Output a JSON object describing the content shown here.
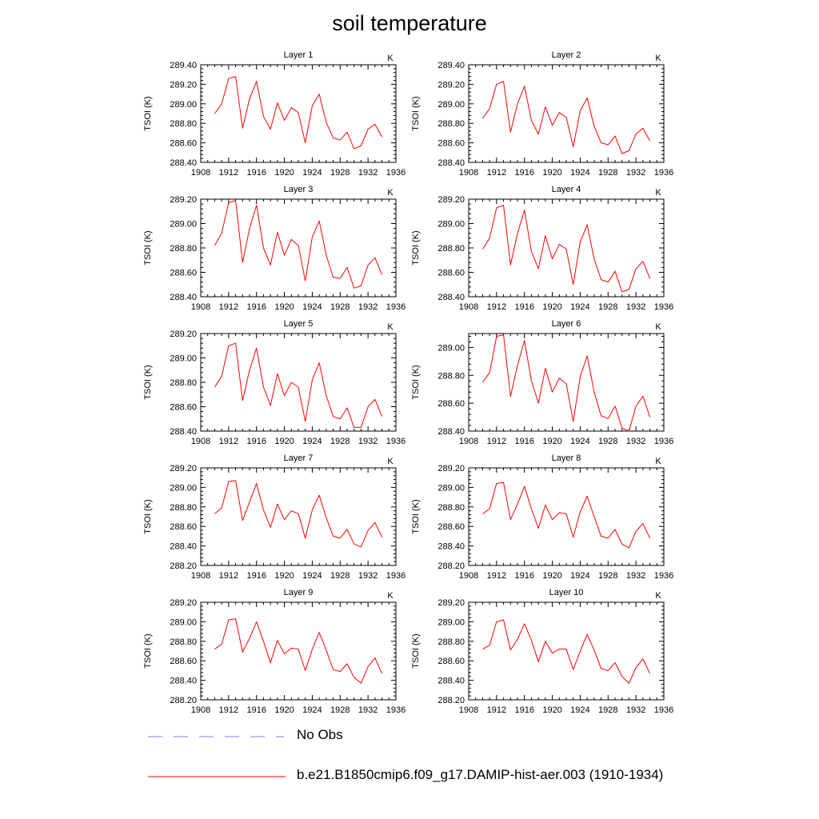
{
  "title": "soil temperature",
  "chart_data": [
    {
      "type": "line",
      "title": "Layer 1",
      "units": "K",
      "ylabel": "TSOI (K)",
      "xlim": [
        1908,
        1936
      ],
      "ylim": [
        288.4,
        289.4
      ],
      "yticks": [
        "288.40",
        "288.60",
        "288.80",
        "289.00",
        "289.20",
        "289.40"
      ],
      "xticks": [
        "1908",
        "1912",
        "1916",
        "1920",
        "1924",
        "1928",
        "1932",
        "1936"
      ],
      "x": [
        1910,
        1911,
        1912,
        1913,
        1914,
        1915,
        1916,
        1917,
        1918,
        1919,
        1920,
        1921,
        1922,
        1923,
        1924,
        1925,
        1926,
        1927,
        1928,
        1929,
        1930,
        1931,
        1932,
        1933,
        1934
      ],
      "series": [
        {
          "name": "b.e21.B1850cmip6.f09_g17.DAMIP-hist-aer.003 (1910-1934)",
          "color": "#ff0000",
          "values": [
            288.9,
            289.0,
            289.26,
            289.28,
            288.75,
            289.05,
            289.23,
            288.87,
            288.74,
            289.01,
            288.83,
            288.96,
            288.91,
            288.6,
            288.98,
            289.1,
            288.81,
            288.65,
            288.63,
            288.71,
            288.54,
            288.57,
            288.74,
            288.79,
            288.66
          ]
        }
      ]
    },
    {
      "type": "line",
      "title": "Layer 2",
      "units": "K",
      "ylabel": "TSOI (K)",
      "xlim": [
        1908,
        1936
      ],
      "ylim": [
        288.4,
        289.4
      ],
      "yticks": [
        "288.40",
        "288.60",
        "288.80",
        "289.00",
        "289.20",
        "289.40"
      ],
      "xticks": [
        "1908",
        "1912",
        "1916",
        "1920",
        "1924",
        "1928",
        "1932",
        "1936"
      ],
      "x": [
        1910,
        1911,
        1912,
        1913,
        1914,
        1915,
        1916,
        1917,
        1918,
        1919,
        1920,
        1921,
        1922,
        1923,
        1924,
        1925,
        1926,
        1927,
        1928,
        1929,
        1930,
        1931,
        1932,
        1933,
        1934
      ],
      "series": [
        {
          "name": "b.e21.B1850cmip6.f09_g17.DAMIP-hist-aer.003 (1910-1934)",
          "color": "#ff0000",
          "values": [
            288.85,
            288.95,
            289.2,
            289.23,
            288.71,
            289.0,
            289.18,
            288.83,
            288.69,
            288.97,
            288.78,
            288.91,
            288.86,
            288.56,
            288.93,
            289.06,
            288.77,
            288.6,
            288.58,
            288.67,
            288.49,
            288.52,
            288.69,
            288.75,
            288.62
          ]
        }
      ]
    },
    {
      "type": "line",
      "title": "Layer 3",
      "units": "K",
      "ylabel": "TSOI (K)",
      "xlim": [
        1908,
        1936
      ],
      "ylim": [
        288.4,
        289.2
      ],
      "yticks": [
        "288.40",
        "288.60",
        "288.80",
        "289.00",
        "289.20"
      ],
      "xticks": [
        "1908",
        "1912",
        "1916",
        "1920",
        "1924",
        "1928",
        "1932",
        "1936"
      ],
      "x": [
        1910,
        1911,
        1912,
        1913,
        1914,
        1915,
        1916,
        1917,
        1918,
        1919,
        1920,
        1921,
        1922,
        1923,
        1924,
        1925,
        1926,
        1927,
        1928,
        1929,
        1930,
        1931,
        1932,
        1933,
        1934
      ],
      "series": [
        {
          "name": "b.e21.B1850cmip6.f09_g17.DAMIP-hist-aer.003 (1910-1934)",
          "color": "#ff0000",
          "values": [
            288.82,
            288.92,
            289.17,
            289.19,
            288.68,
            288.96,
            289.15,
            288.8,
            288.66,
            288.93,
            288.74,
            288.87,
            288.82,
            288.53,
            288.89,
            289.02,
            288.74,
            288.56,
            288.55,
            288.64,
            288.47,
            288.49,
            288.66,
            288.72,
            288.58
          ]
        }
      ]
    },
    {
      "type": "line",
      "title": "Layer 4",
      "units": "K",
      "ylabel": "TSOI (K)",
      "xlim": [
        1908,
        1936
      ],
      "ylim": [
        288.4,
        289.2
      ],
      "yticks": [
        "288.40",
        "288.60",
        "288.80",
        "289.00",
        "289.20"
      ],
      "xticks": [
        "1908",
        "1912",
        "1916",
        "1920",
        "1924",
        "1928",
        "1932",
        "1936"
      ],
      "x": [
        1910,
        1911,
        1912,
        1913,
        1914,
        1915,
        1916,
        1917,
        1918,
        1919,
        1920,
        1921,
        1922,
        1923,
        1924,
        1925,
        1926,
        1927,
        1928,
        1929,
        1930,
        1931,
        1932,
        1933,
        1934
      ],
      "series": [
        {
          "name": "b.e21.B1850cmip6.f09_g17.DAMIP-hist-aer.003 (1910-1934)",
          "color": "#ff0000",
          "values": [
            288.79,
            288.88,
            289.13,
            289.15,
            288.66,
            288.92,
            289.11,
            288.77,
            288.63,
            288.9,
            288.71,
            288.83,
            288.79,
            288.5,
            288.85,
            288.99,
            288.71,
            288.54,
            288.52,
            288.61,
            288.44,
            288.46,
            288.63,
            288.69,
            288.55
          ]
        }
      ]
    },
    {
      "type": "line",
      "title": "Layer 5",
      "units": "K",
      "ylabel": "TSOI (K)",
      "xlim": [
        1908,
        1936
      ],
      "ylim": [
        288.4,
        289.2
      ],
      "yticks": [
        "288.40",
        "288.60",
        "288.80",
        "289.00",
        "289.20"
      ],
      "xticks": [
        "1908",
        "1912",
        "1916",
        "1920",
        "1924",
        "1928",
        "1932",
        "1936"
      ],
      "x": [
        1910,
        1911,
        1912,
        1913,
        1914,
        1915,
        1916,
        1917,
        1918,
        1919,
        1920,
        1921,
        1922,
        1923,
        1924,
        1925,
        1926,
        1927,
        1928,
        1929,
        1930,
        1931,
        1932,
        1933,
        1934
      ],
      "series": [
        {
          "name": "b.e21.B1850cmip6.f09_g17.DAMIP-hist-aer.003 (1910-1934)",
          "color": "#ff0000",
          "values": [
            288.76,
            288.85,
            289.1,
            289.12,
            288.65,
            288.9,
            289.08,
            288.76,
            288.61,
            288.87,
            288.69,
            288.8,
            288.76,
            288.48,
            288.82,
            288.96,
            288.69,
            288.52,
            288.5,
            288.59,
            288.43,
            288.43,
            288.6,
            288.66,
            288.52
          ]
        }
      ]
    },
    {
      "type": "line",
      "title": "Layer 6",
      "units": "K",
      "ylabel": "TSOI (K)",
      "xlim": [
        1908,
        1936
      ],
      "ylim": [
        288.4,
        289.1
      ],
      "yticks": [
        "288.40",
        "288.60",
        "288.80",
        "289.00"
      ],
      "xticks": [
        "1908",
        "1912",
        "1916",
        "1920",
        "1924",
        "1928",
        "1932",
        "1936"
      ],
      "x": [
        1910,
        1911,
        1912,
        1913,
        1914,
        1915,
        1916,
        1917,
        1918,
        1919,
        1920,
        1921,
        1922,
        1923,
        1924,
        1925,
        1926,
        1927,
        1928,
        1929,
        1930,
        1931,
        1932,
        1933,
        1934
      ],
      "series": [
        {
          "name": "b.e21.B1850cmip6.f09_g17.DAMIP-hist-aer.003 (1910-1934)",
          "color": "#ff0000",
          "values": [
            288.75,
            288.82,
            289.08,
            289.09,
            288.65,
            288.87,
            289.05,
            288.76,
            288.6,
            288.85,
            288.68,
            288.78,
            288.74,
            288.47,
            288.79,
            288.94,
            288.68,
            288.51,
            288.49,
            288.58,
            288.42,
            288.4,
            288.58,
            288.65,
            288.5
          ]
        }
      ]
    },
    {
      "type": "line",
      "title": "Layer 7",
      "units": "K",
      "ylabel": "TSOI (K)",
      "xlim": [
        1908,
        1936
      ],
      "ylim": [
        288.2,
        289.2
      ],
      "yticks": [
        "288.20",
        "288.40",
        "288.60",
        "288.80",
        "289.00",
        "289.20"
      ],
      "xticks": [
        "1908",
        "1912",
        "1916",
        "1920",
        "1924",
        "1928",
        "1932",
        "1936"
      ],
      "x": [
        1910,
        1911,
        1912,
        1913,
        1914,
        1915,
        1916,
        1917,
        1918,
        1919,
        1920,
        1921,
        1922,
        1923,
        1924,
        1925,
        1926,
        1927,
        1928,
        1929,
        1930,
        1931,
        1932,
        1933,
        1934
      ],
      "series": [
        {
          "name": "b.e21.B1850cmip6.f09_g17.DAMIP-hist-aer.003 (1910-1934)",
          "color": "#ff0000",
          "values": [
            288.73,
            288.79,
            289.06,
            289.07,
            288.66,
            288.85,
            289.04,
            288.77,
            288.59,
            288.83,
            288.67,
            288.76,
            288.73,
            288.48,
            288.77,
            288.92,
            288.69,
            288.5,
            288.48,
            288.57,
            288.42,
            288.39,
            288.56,
            288.64,
            288.49
          ]
        }
      ]
    },
    {
      "type": "line",
      "title": "Layer 8",
      "units": "K",
      "ylabel": "TSOI (K)",
      "xlim": [
        1908,
        1936
      ],
      "ylim": [
        288.2,
        289.2
      ],
      "yticks": [
        "288.20",
        "288.40",
        "288.60",
        "288.80",
        "289.00",
        "289.20"
      ],
      "xticks": [
        "1908",
        "1912",
        "1916",
        "1920",
        "1924",
        "1928",
        "1932",
        "1936"
      ],
      "x": [
        1910,
        1911,
        1912,
        1913,
        1914,
        1915,
        1916,
        1917,
        1918,
        1919,
        1920,
        1921,
        1922,
        1923,
        1924,
        1925,
        1926,
        1927,
        1928,
        1929,
        1930,
        1931,
        1932,
        1933,
        1934
      ],
      "series": [
        {
          "name": "b.e21.B1850cmip6.f09_g17.DAMIP-hist-aer.003 (1910-1934)",
          "color": "#ff0000",
          "values": [
            288.73,
            288.78,
            289.04,
            289.05,
            288.67,
            288.83,
            289.01,
            288.78,
            288.58,
            288.82,
            288.67,
            288.74,
            288.73,
            288.49,
            288.75,
            288.91,
            288.7,
            288.5,
            288.48,
            288.57,
            288.42,
            288.38,
            288.55,
            288.63,
            288.48
          ]
        }
      ]
    },
    {
      "type": "line",
      "title": "Layer 9",
      "units": "K",
      "ylabel": "TSOI (K)",
      "xlim": [
        1908,
        1936
      ],
      "ylim": [
        288.2,
        289.2
      ],
      "yticks": [
        "288.20",
        "288.40",
        "288.60",
        "288.80",
        "289.00",
        "289.20"
      ],
      "xticks": [
        "1908",
        "1912",
        "1916",
        "1920",
        "1924",
        "1928",
        "1932",
        "1936"
      ],
      "x": [
        1910,
        1911,
        1912,
        1913,
        1914,
        1915,
        1916,
        1917,
        1918,
        1919,
        1920,
        1921,
        1922,
        1923,
        1924,
        1925,
        1926,
        1927,
        1928,
        1929,
        1930,
        1931,
        1932,
        1933,
        1934
      ],
      "series": [
        {
          "name": "b.e21.B1850cmip6.f09_g17.DAMIP-hist-aer.003 (1910-1934)",
          "color": "#ff0000",
          "values": [
            288.72,
            288.77,
            289.02,
            289.03,
            288.69,
            288.83,
            289.0,
            288.8,
            288.58,
            288.81,
            288.67,
            288.73,
            288.72,
            288.5,
            288.72,
            288.89,
            288.71,
            288.51,
            288.49,
            288.57,
            288.43,
            288.37,
            288.54,
            288.63,
            288.47
          ]
        }
      ]
    },
    {
      "type": "line",
      "title": "Layer 10",
      "units": "K",
      "ylabel": "TSOI (K)",
      "xlim": [
        1908,
        1936
      ],
      "ylim": [
        288.2,
        289.2
      ],
      "yticks": [
        "288.20",
        "288.40",
        "288.60",
        "288.80",
        "289.00",
        "289.20"
      ],
      "xticks": [
        "1908",
        "1912",
        "1916",
        "1920",
        "1924",
        "1928",
        "1932",
        "1936"
      ],
      "x": [
        1910,
        1911,
        1912,
        1913,
        1914,
        1915,
        1916,
        1917,
        1918,
        1919,
        1920,
        1921,
        1922,
        1923,
        1924,
        1925,
        1926,
        1927,
        1928,
        1929,
        1930,
        1931,
        1932,
        1933,
        1934
      ],
      "series": [
        {
          "name": "b.e21.B1850cmip6.f09_g17.DAMIP-hist-aer.003 (1910-1934)",
          "color": "#ff0000",
          "values": [
            288.72,
            288.76,
            289.0,
            289.02,
            288.71,
            288.82,
            288.98,
            288.81,
            288.59,
            288.8,
            288.68,
            288.72,
            288.72,
            288.51,
            288.7,
            288.87,
            288.71,
            288.52,
            288.5,
            288.58,
            288.44,
            288.37,
            288.53,
            288.62,
            288.47
          ]
        }
      ]
    }
  ],
  "legend": [
    {
      "label": "No Obs",
      "color": "#8080ff",
      "style": "dashed"
    },
    {
      "label": "b.e21.B1850cmip6.f09_g17.DAMIP-hist-aer.003 (1910-1934)",
      "color": "#ff0000",
      "style": "solid"
    }
  ]
}
